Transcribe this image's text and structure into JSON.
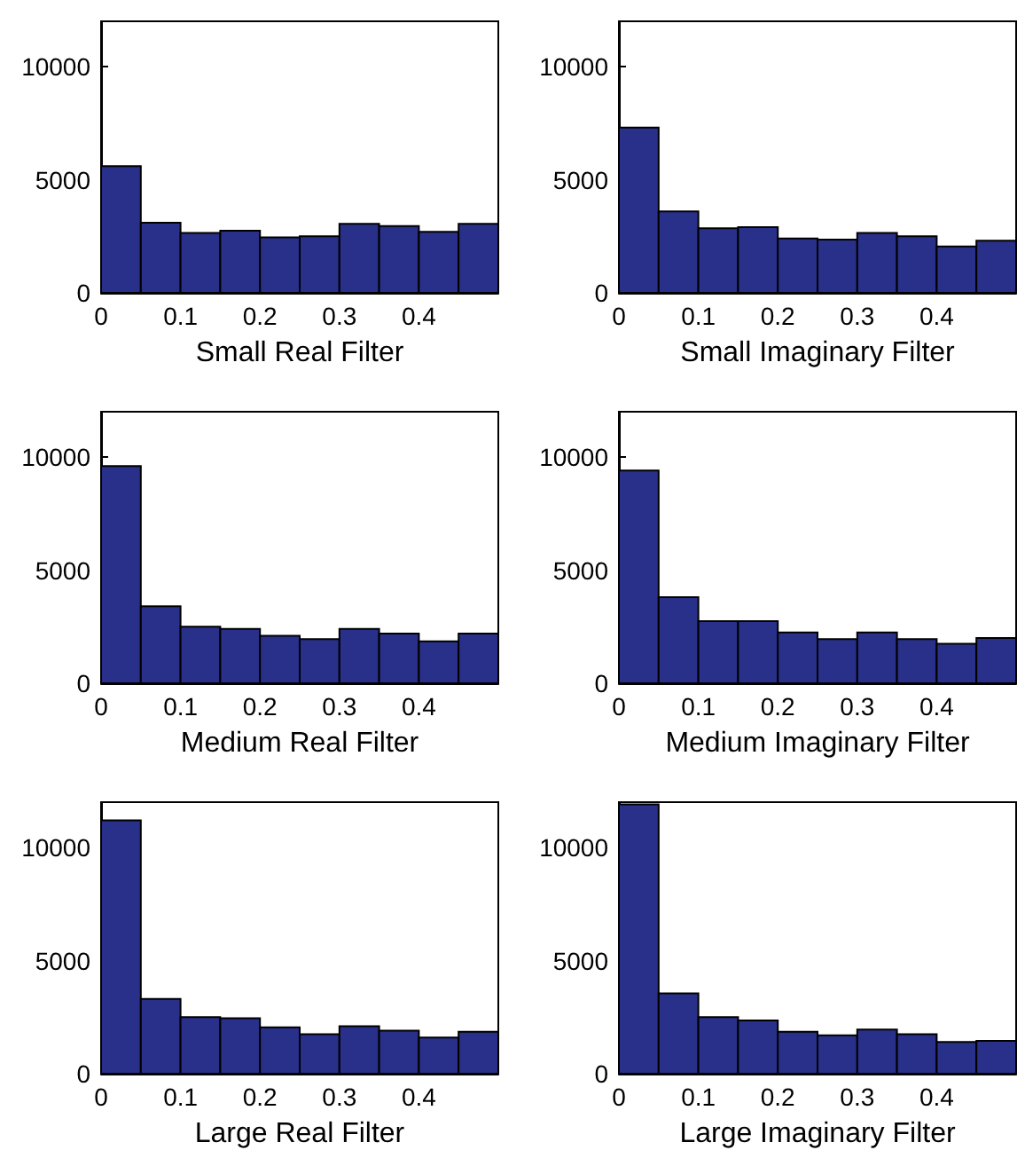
{
  "chart_data": [
    {
      "type": "histogram",
      "xlabel": "Small Real Filter",
      "bins": [
        0,
        0.05,
        0.1,
        0.15,
        0.2,
        0.25,
        0.3,
        0.35,
        0.4,
        0.45,
        0.5
      ],
      "values": [
        5600,
        3100,
        2650,
        2750,
        2450,
        2500,
        3050,
        2950,
        2700,
        3050
      ],
      "color": "#283089",
      "xlim": [
        0,
        0.5
      ],
      "xticks": [
        0,
        0.1,
        0.2,
        0.3,
        0.4
      ],
      "ylim": [
        0,
        12000
      ],
      "yticks": [
        0,
        5000,
        10000
      ],
      "grid": false
    },
    {
      "type": "histogram",
      "xlabel": "Small Imaginary Filter",
      "bins": [
        0,
        0.05,
        0.1,
        0.15,
        0.2,
        0.25,
        0.3,
        0.35,
        0.4,
        0.45,
        0.5
      ],
      "values": [
        7300,
        3600,
        2850,
        2900,
        2400,
        2350,
        2650,
        2500,
        2050,
        2300
      ],
      "color": "#283089",
      "xlim": [
        0,
        0.5
      ],
      "xticks": [
        0,
        0.1,
        0.2,
        0.3,
        0.4
      ],
      "ylim": [
        0,
        12000
      ],
      "yticks": [
        0,
        5000,
        10000
      ],
      "grid": false
    },
    {
      "type": "histogram",
      "xlabel": "Medium Real Filter",
      "bins": [
        0,
        0.05,
        0.1,
        0.15,
        0.2,
        0.25,
        0.3,
        0.35,
        0.4,
        0.45,
        0.5
      ],
      "values": [
        9600,
        3400,
        2500,
        2400,
        2100,
        1950,
        2400,
        2200,
        1850,
        2200
      ],
      "color": "#283089",
      "xlim": [
        0,
        0.5
      ],
      "xticks": [
        0,
        0.1,
        0.2,
        0.3,
        0.4
      ],
      "ylim": [
        0,
        12000
      ],
      "yticks": [
        0,
        5000,
        10000
      ],
      "grid": false
    },
    {
      "type": "histogram",
      "xlabel": "Medium Imaginary Filter",
      "bins": [
        0,
        0.05,
        0.1,
        0.15,
        0.2,
        0.25,
        0.3,
        0.35,
        0.4,
        0.45,
        0.5
      ],
      "values": [
        9400,
        3800,
        2750,
        2750,
        2250,
        1950,
        2250,
        1950,
        1750,
        2000
      ],
      "color": "#283089",
      "xlim": [
        0,
        0.5
      ],
      "xticks": [
        0,
        0.1,
        0.2,
        0.3,
        0.4
      ],
      "ylim": [
        0,
        12000
      ],
      "yticks": [
        0,
        5000,
        10000
      ],
      "grid": false
    },
    {
      "type": "histogram",
      "xlabel": "Large Real Filter",
      "bins": [
        0,
        0.05,
        0.1,
        0.15,
        0.2,
        0.25,
        0.3,
        0.35,
        0.4,
        0.45,
        0.5
      ],
      "values": [
        11200,
        3300,
        2500,
        2450,
        2050,
        1750,
        2100,
        1900,
        1600,
        1850
      ],
      "color": "#283089",
      "xlim": [
        0,
        0.5
      ],
      "xticks": [
        0,
        0.1,
        0.2,
        0.3,
        0.4
      ],
      "ylim": [
        0,
        12000
      ],
      "yticks": [
        0,
        5000,
        10000
      ],
      "grid": false
    },
    {
      "type": "histogram",
      "xlabel": "Large Imaginary Filter",
      "bins": [
        0,
        0.05,
        0.1,
        0.15,
        0.2,
        0.25,
        0.3,
        0.35,
        0.4,
        0.45,
        0.5
      ],
      "values": [
        11900,
        3550,
        2500,
        2350,
        1850,
        1700,
        1950,
        1750,
        1400,
        1450
      ],
      "color": "#283089",
      "xlim": [
        0,
        0.5
      ],
      "xticks": [
        0,
        0.1,
        0.2,
        0.3,
        0.4
      ],
      "ylim": [
        0,
        12000
      ],
      "yticks": [
        0,
        5000,
        10000
      ],
      "grid": false
    }
  ]
}
